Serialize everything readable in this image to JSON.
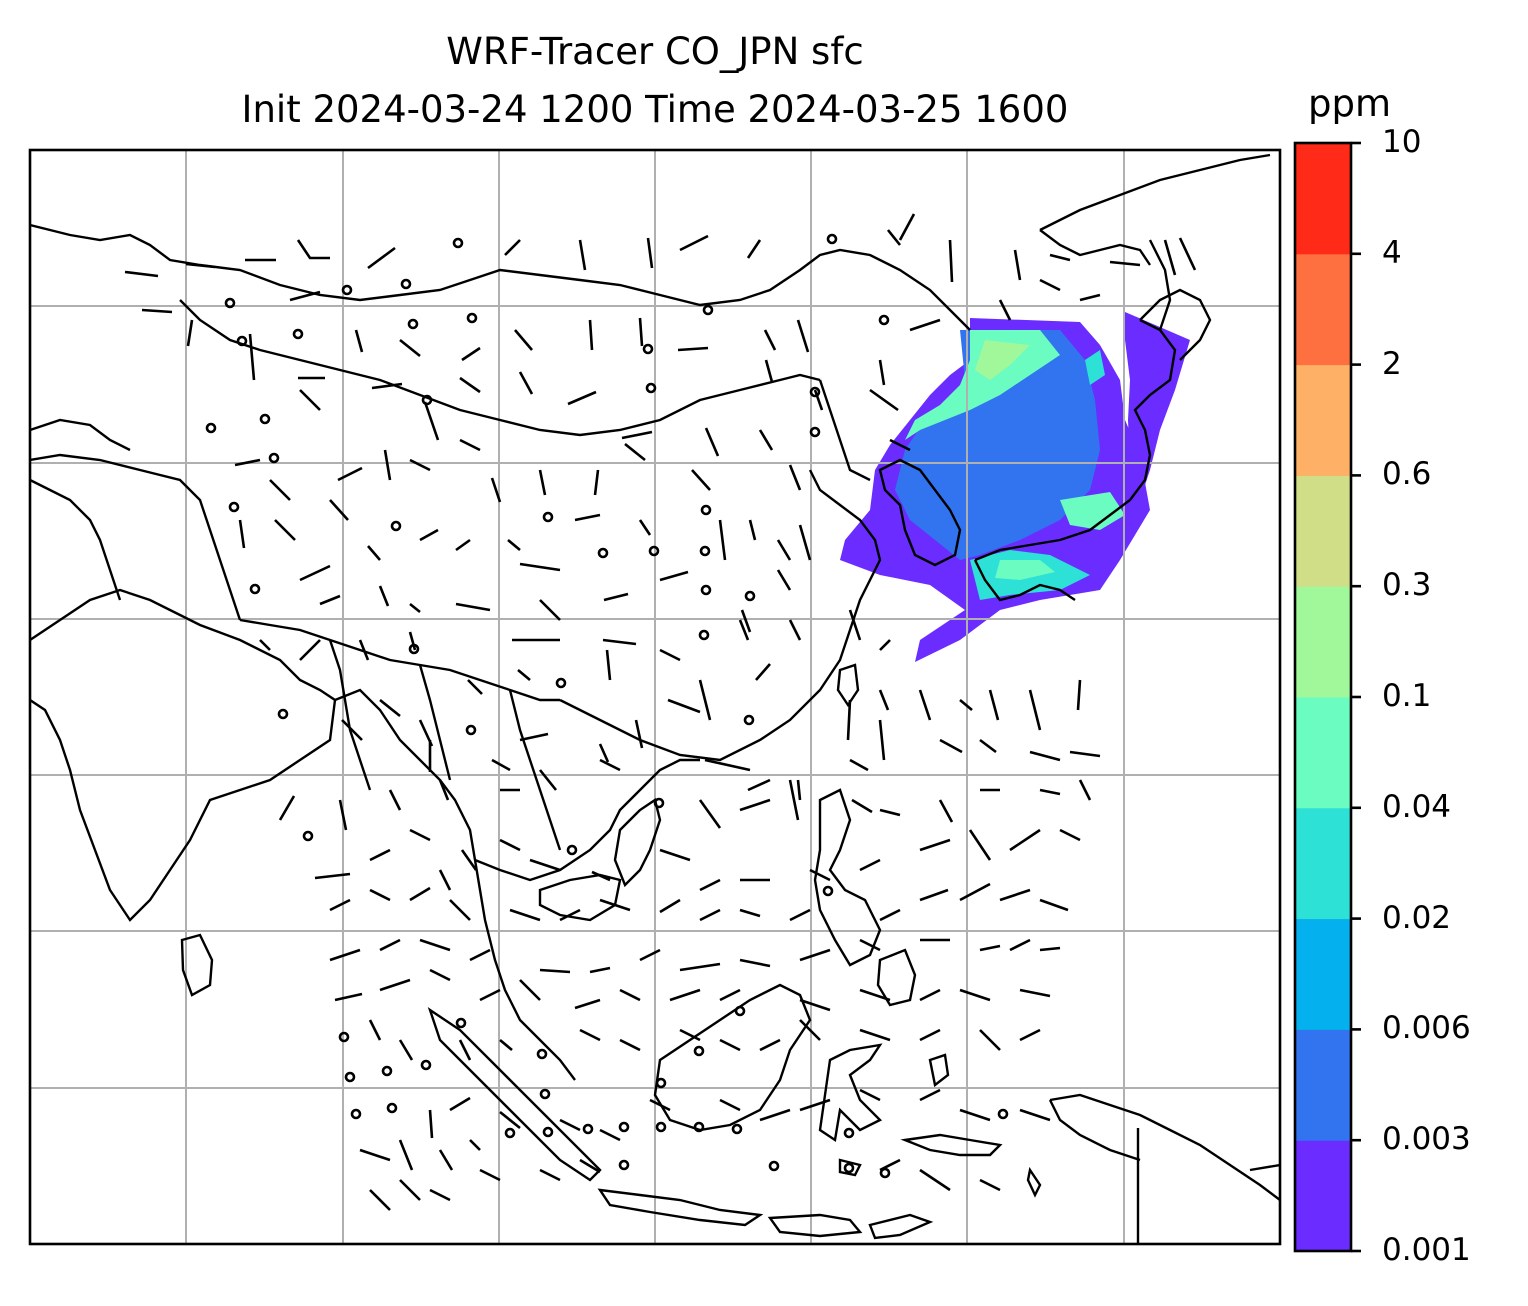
{
  "title": {
    "line1": "WRF-Tracer CO_JPN sfc",
    "line2": "Init 2024-03-24 1200 Time 2024-03-25 1600"
  },
  "colorbar": {
    "unit": "ppm",
    "levels": [
      "0.001",
      "0.003",
      "0.006",
      "0.02",
      "0.04",
      "0.1",
      "0.3",
      "0.6",
      "2",
      "4",
      "10"
    ],
    "colors": [
      "#6a2cff",
      "#3273f0",
      "#04b0ee",
      "#2de1d6",
      "#6afcc0",
      "#a0f89a",
      "#d0df87",
      "#feb066",
      "#ff7040",
      "#ff2a17"
    ]
  },
  "map": {
    "features": [
      "coastlines",
      "country-borders",
      "lat-lon-gridlines",
      "wind-barbs",
      "tracer-concentration-fill"
    ],
    "grid_color": "#b0b0b0"
  }
}
